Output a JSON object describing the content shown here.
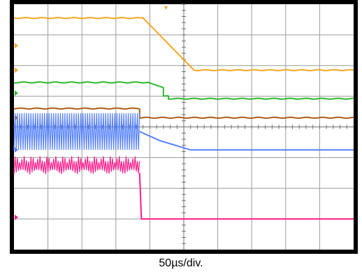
{
  "chart_data": {
    "type": "line",
    "title": "",
    "xlabel": "50µs/div.",
    "ylabel": "",
    "grid": true,
    "divisions": {
      "x": 10,
      "y": 8
    },
    "time_per_div_us": 50,
    "xlim_div": [
      0,
      10
    ],
    "ylim_div": [
      0,
      8
    ],
    "trigger_x_div": 5,
    "colors": {
      "screen": "#ffffff",
      "frame": "#000000",
      "grid": "#9a9a9a",
      "orange": "#f5a623",
      "green": "#2db82d",
      "brown": "#b05a14",
      "blue": "#5580ff",
      "pink": "#ff1e8c"
    },
    "series": [
      {
        "color_key": "orange",
        "kind": "step",
        "marker_y_div": 5.85,
        "x": [
          0,
          3.8,
          5.3,
          10
        ],
        "y": [
          7.55,
          7.55,
          5.85,
          5.85
        ]
      },
      {
        "color_key": "green",
        "kind": "step",
        "marker_y_div": 5.1,
        "x": [
          0,
          3.95,
          4.4,
          4.4,
          4.55,
          4.55,
          10
        ],
        "y": [
          5.45,
          5.45,
          5.28,
          5.02,
          5.02,
          4.92,
          4.92
        ]
      },
      {
        "color_key": "brown",
        "kind": "step",
        "marker_y_div": 4.3,
        "x": [
          0,
          3.7,
          3.7,
          10
        ],
        "y": [
          4.6,
          4.6,
          4.3,
          4.3
        ]
      },
      {
        "color_key": "blue",
        "kind": "burst",
        "burst_x_div": [
          0,
          3.7
        ],
        "burst_low_div": 3.25,
        "burst_high_div": 4.45,
        "after_x": [
          3.7,
          4.3,
          5.2,
          10
        ],
        "after_y": [
          3.85,
          3.55,
          3.25,
          3.25
        ],
        "marker_y_div": 3.25
      },
      {
        "color_key": "pink",
        "kind": "burst",
        "burst_x_div": [
          0,
          3.7
        ],
        "burst_low_div": 2.45,
        "burst_high_div": 2.95,
        "after_x": [
          3.7,
          3.75,
          10
        ],
        "after_y": [
          2.5,
          1.0,
          1.0
        ],
        "marker_y_div": 1.05
      }
    ]
  }
}
